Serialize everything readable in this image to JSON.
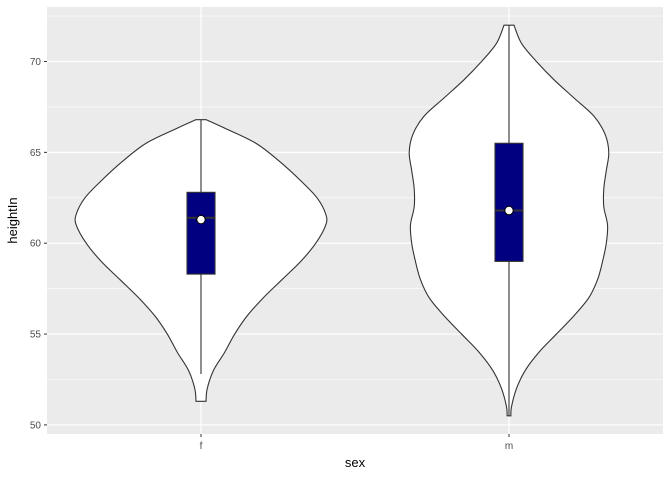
{
  "chart_data": {
    "type": "violin",
    "title": "",
    "xlabel": "sex",
    "ylabel": "heightIn",
    "ylim": [
      49.5,
      73.0
    ],
    "yticks": [
      50,
      55,
      60,
      65,
      70
    ],
    "ytick_labels": [
      "50",
      "55",
      "60",
      "65",
      "70"
    ],
    "categories": [
      "f",
      "m"
    ],
    "grid": true,
    "legend": "none",
    "colors": {
      "panel_bg": "#ebebeb",
      "grid": "#ffffff",
      "violin_fill": "#ffffff",
      "violin_stroke": "#333333",
      "box_fill": "#000080",
      "box_stroke": "#333333",
      "mean_point": "#ffffff",
      "tick_text": "#4d4d4d",
      "label_text": "#000000"
    },
    "series": [
      {
        "category": "f",
        "violin_range": [
          51.3,
          66.8
        ],
        "density_profile": [
          [
            51.3,
            0.04
          ],
          [
            52.0,
            0.05
          ],
          [
            53.0,
            0.1
          ],
          [
            54.0,
            0.19
          ],
          [
            55.0,
            0.27
          ],
          [
            56.0,
            0.37
          ],
          [
            57.0,
            0.5
          ],
          [
            58.0,
            0.65
          ],
          [
            59.0,
            0.8
          ],
          [
            60.0,
            0.92
          ],
          [
            61.0,
            1.0
          ],
          [
            61.6,
            1.0
          ],
          [
            62.5,
            0.93
          ],
          [
            63.5,
            0.79
          ],
          [
            64.5,
            0.63
          ],
          [
            65.5,
            0.44
          ],
          [
            66.3,
            0.2
          ],
          [
            66.8,
            0.04
          ]
        ],
        "whisker_low": 52.8,
        "q1": 58.3,
        "median": 61.4,
        "q3": 62.8,
        "whisker_high": 66.8,
        "mean": 61.3
      },
      {
        "category": "m",
        "violin_range": [
          50.5,
          72.0
        ],
        "density_profile": [
          [
            50.5,
            0.015
          ],
          [
            51.0,
            0.02
          ],
          [
            52.0,
            0.06
          ],
          [
            53.0,
            0.13
          ],
          [
            54.0,
            0.24
          ],
          [
            55.0,
            0.38
          ],
          [
            56.0,
            0.52
          ],
          [
            57.0,
            0.64
          ],
          [
            58.0,
            0.71
          ],
          [
            59.0,
            0.75
          ],
          [
            60.0,
            0.78
          ],
          [
            61.0,
            0.79
          ],
          [
            62.0,
            0.76
          ],
          [
            63.0,
            0.76
          ],
          [
            64.0,
            0.78
          ],
          [
            65.0,
            0.8
          ],
          [
            66.0,
            0.77
          ],
          [
            67.0,
            0.68
          ],
          [
            68.0,
            0.52
          ],
          [
            69.0,
            0.36
          ],
          [
            70.0,
            0.22
          ],
          [
            71.0,
            0.1
          ],
          [
            72.0,
            0.04
          ]
        ],
        "whisker_low": 50.5,
        "q1": 59.0,
        "median": 61.8,
        "q3": 65.5,
        "whisker_high": 72.0,
        "mean": 61.8
      }
    ]
  }
}
